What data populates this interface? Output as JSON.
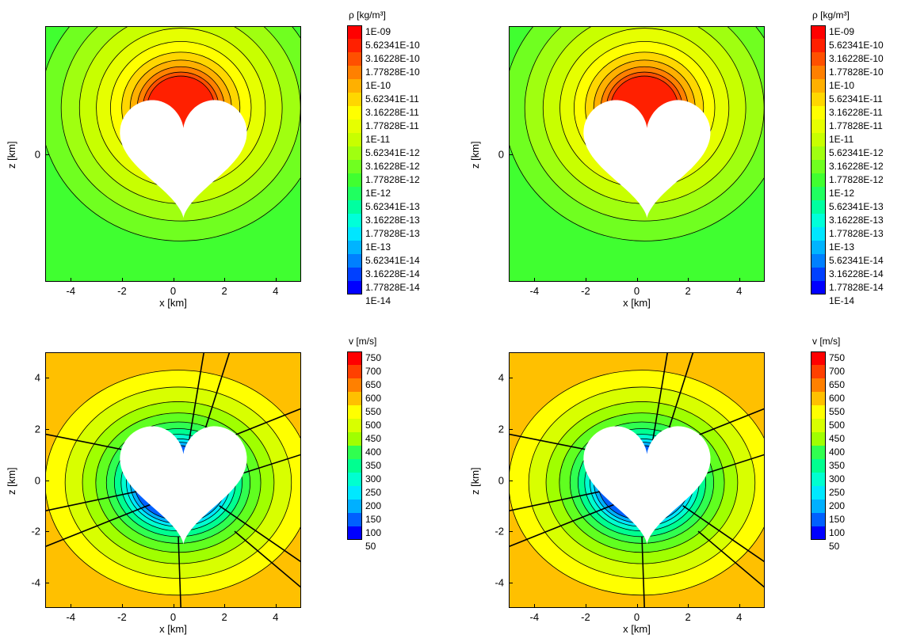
{
  "colors": {
    "rho_scale": [
      "#0000ff",
      "#0040ff",
      "#0080ff",
      "#00b4ff",
      "#00e6ff",
      "#00ffd9",
      "#00ffa0",
      "#20ff60",
      "#40ff30",
      "#70ff20",
      "#a0ff10",
      "#c8ff00",
      "#e6ff00",
      "#ffff00",
      "#ffd700",
      "#ffb000",
      "#ff8000",
      "#ff5000",
      "#ff2000",
      "#ff0000"
    ],
    "v_scale": [
      "#0000ff",
      "#0060ff",
      "#00b0ff",
      "#00e8ff",
      "#00ffd0",
      "#00ff90",
      "#30ff50",
      "#60ff20",
      "#a0ff00",
      "#d8ff00",
      "#ffff00",
      "#ffc000",
      "#ff8000",
      "#ff4000",
      "#ff0000"
    ]
  },
  "chart_data": [
    {
      "type": "heatmap",
      "panel": "top-left",
      "title": "",
      "xlabel": "x [km]",
      "ylabel": "z [km]",
      "xlim": [
        -5,
        5
      ],
      "ylim": [
        -5,
        5
      ],
      "x_ticks": [
        "-4",
        "-2",
        "0",
        "2",
        "4"
      ],
      "y_ticks": [
        "0"
      ],
      "legend_title": "ρ [kg/m³]",
      "legend_levels": [
        "1E-09",
        "5.62341E-10",
        "3.16228E-10",
        "1.77828E-10",
        "1E-10",
        "5.62341E-11",
        "3.16228E-11",
        "1.77828E-11",
        "1E-11",
        "5.62341E-12",
        "3.16228E-12",
        "1.77828E-12",
        "1E-12",
        "5.62341E-13",
        "3.16228E-13",
        "1.77828E-13",
        "1E-13",
        "5.62341E-14",
        "3.16228E-14",
        "1.77828E-14",
        "1E-14"
      ],
      "legend_placement": "right",
      "peak_region": "above nucleus (red/orange, ~1E-09 to 1E-10)",
      "background_level": "~1E-12 (green)",
      "body": "heart-shaped nucleus, white"
    },
    {
      "type": "heatmap",
      "panel": "top-right",
      "title": "",
      "xlabel": "x [km]",
      "ylabel": "z [km]",
      "xlim": [
        -5,
        5
      ],
      "ylim": [
        -5,
        5
      ],
      "x_ticks": [
        "-4",
        "-2",
        "0",
        "2",
        "4"
      ],
      "y_ticks": [
        "0"
      ],
      "legend_title": "ρ [kg/m³]",
      "legend_levels": [
        "1E-09",
        "5.62341E-10",
        "3.16228E-10",
        "1.77828E-10",
        "1E-10",
        "5.62341E-11",
        "3.16228E-11",
        "1.77828E-11",
        "1E-11",
        "5.62341E-12",
        "3.16228E-12",
        "1.77828E-12",
        "1E-12",
        "5.62341E-13",
        "3.16228E-13",
        "1.77828E-13",
        "1E-13",
        "5.62341E-14",
        "3.16228E-14",
        "1.77828E-14",
        "1E-14"
      ],
      "legend_placement": "right"
    },
    {
      "type": "heatmap",
      "panel": "bottom-left",
      "title": "",
      "xlabel": "x [km]",
      "ylabel": "z [km]",
      "xlim": [
        -5,
        5
      ],
      "ylim": [
        -5,
        5
      ],
      "x_ticks": [
        "-4",
        "-2",
        "0",
        "2",
        "4"
      ],
      "y_ticks": [
        "4",
        "2",
        "0",
        "-2",
        "-4"
      ],
      "legend_title": "v [m/s]",
      "legend_levels": [
        "750",
        "700",
        "650",
        "600",
        "550",
        "500",
        "450",
        "400",
        "350",
        "300",
        "250",
        "200",
        "150",
        "100",
        "50"
      ],
      "legend_placement": "right",
      "streamlines": true
    },
    {
      "type": "heatmap",
      "panel": "bottom-right",
      "title": "",
      "xlabel": "x [km]",
      "ylabel": "z [km]",
      "xlim": [
        -5,
        5
      ],
      "ylim": [
        -5,
        5
      ],
      "x_ticks": [
        "-4",
        "-2",
        "0",
        "2",
        "4"
      ],
      "y_ticks": [
        "4",
        "2",
        "0",
        "-2",
        "-4"
      ],
      "legend_title": "v [m/s]",
      "legend_levels": [
        "750",
        "700",
        "650",
        "600",
        "550",
        "500",
        "450",
        "400",
        "350",
        "300",
        "250",
        "200",
        "150",
        "100",
        "50"
      ],
      "legend_placement": "right",
      "streamlines": true
    }
  ]
}
